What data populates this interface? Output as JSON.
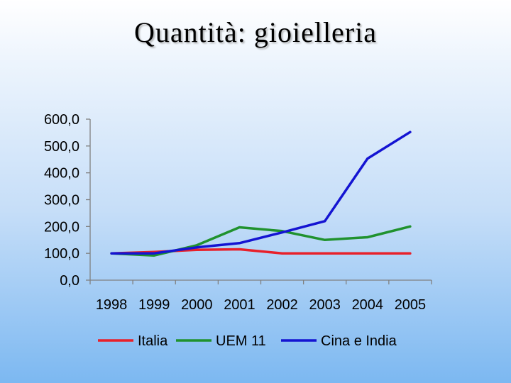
{
  "slide": {
    "title": "Quantità: gioielleria"
  },
  "chart_data": {
    "type": "line",
    "title": "Quantità: gioielleria",
    "xlabel": "",
    "ylabel": "",
    "categories": [
      "1998",
      "1999",
      "2000",
      "2001",
      "2002",
      "2003",
      "2004",
      "2005"
    ],
    "ylim": [
      0,
      600
    ],
    "yticks": [
      0,
      100,
      200,
      300,
      400,
      500,
      600
    ],
    "ytick_labels": [
      "0,0",
      "100,0",
      "200,0",
      "300,0",
      "400,0",
      "500,0",
      "600,0"
    ],
    "grid": false,
    "legend_position": "bottom",
    "series": [
      {
        "name": "Italia",
        "color": "#e8202a",
        "values": [
          100,
          105,
          113,
          115,
          100,
          100,
          100,
          100
        ]
      },
      {
        "name": "UEM 11",
        "color": "#20922e",
        "values": [
          100,
          92,
          130,
          197,
          183,
          150,
          160,
          200
        ]
      },
      {
        "name": "Cina e India",
        "color": "#1414d2",
        "values": [
          100,
          100,
          122,
          138,
          178,
          220,
          453,
          552
        ]
      }
    ]
  }
}
